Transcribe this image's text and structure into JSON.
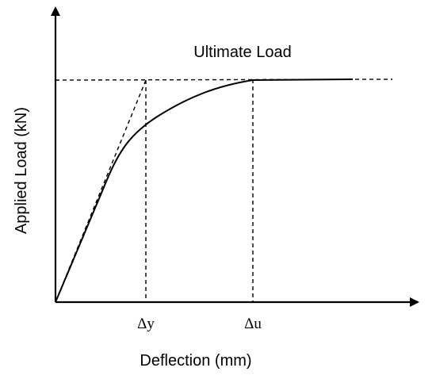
{
  "diagram": {
    "title": "Ultimate Load",
    "x_axis_label": "Deflection (mm)",
    "y_axis_label": "Applied Load (kN)",
    "markers": {
      "yield": "Δy",
      "ultimate": "Δu"
    }
  }
}
